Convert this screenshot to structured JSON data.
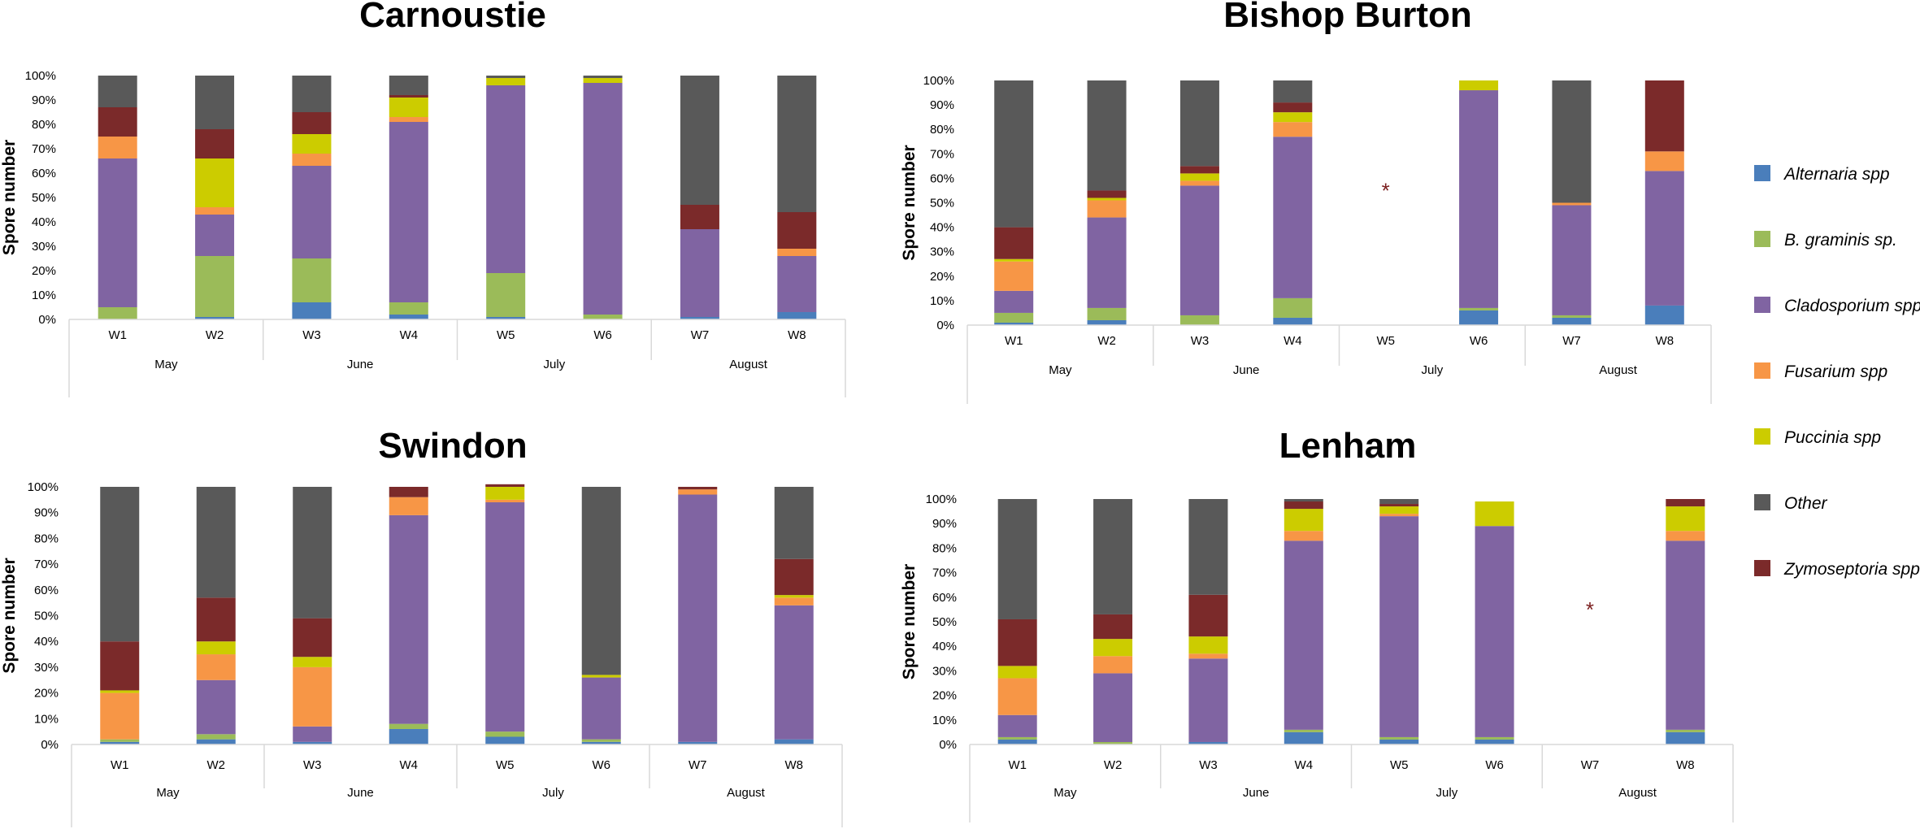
{
  "chart_data": [
    {
      "type": "bar",
      "stacked": true,
      "title": "Carnoustie",
      "ylabel": "Spore number",
      "ylim": [
        0,
        100
      ],
      "yticks": [
        "0%",
        "10%",
        "20%",
        "30%",
        "40%",
        "50%",
        "60%",
        "70%",
        "80%",
        "90%",
        "100%"
      ],
      "categories": [
        "W1",
        "W2",
        "W3",
        "W4",
        "W5",
        "W6",
        "W7",
        "W8"
      ],
      "months": [
        "May",
        "June",
        "July",
        "August"
      ],
      "series": [
        {
          "name": "Alternaria spp",
          "values": [
            0,
            1,
            7,
            2,
            1,
            0,
            1,
            3
          ]
        },
        {
          "name": "B. graminis sp.",
          "values": [
            5,
            25,
            18,
            5,
            18,
            2,
            0,
            0
          ]
        },
        {
          "name": "Cladosporium spp",
          "values": [
            61,
            17,
            38,
            74,
            77,
            95,
            36,
            23
          ]
        },
        {
          "name": "Fusarium spp",
          "values": [
            9,
            3,
            5,
            2,
            0,
            0,
            0,
            3
          ]
        },
        {
          "name": "Puccinia spp",
          "values": [
            0,
            20,
            8,
            8,
            3,
            2,
            0,
            0
          ]
        },
        {
          "name": "Zymoseptoria spp",
          "values": [
            12,
            12,
            9,
            1,
            0,
            0,
            10,
            15
          ]
        },
        {
          "name": "Other",
          "values": [
            13,
            22,
            15,
            8,
            1,
            1,
            53,
            56
          ]
        }
      ],
      "missing": []
    },
    {
      "type": "bar",
      "stacked": true,
      "title": "Bishop Burton",
      "ylabel": "Spore number",
      "ylim": [
        0,
        100
      ],
      "yticks": [
        "0%",
        "10%",
        "20%",
        "30%",
        "40%",
        "50%",
        "60%",
        "70%",
        "80%",
        "90%",
        "100%"
      ],
      "categories": [
        "W1",
        "W2",
        "W3",
        "W4",
        "W5",
        "W6",
        "W7",
        "W8"
      ],
      "months": [
        "May",
        "June",
        "July",
        "August"
      ],
      "series": [
        {
          "name": "Alternaria spp",
          "values": [
            1,
            2,
            0,
            3,
            0,
            6,
            3,
            8
          ]
        },
        {
          "name": "B. graminis sp.",
          "values": [
            4,
            5,
            4,
            8,
            0,
            1,
            1,
            0
          ]
        },
        {
          "name": "Cladosporium spp",
          "values": [
            9,
            37,
            53,
            66,
            0,
            89,
            45,
            55
          ]
        },
        {
          "name": "Fusarium spp",
          "values": [
            12,
            7,
            2,
            6,
            0,
            0,
            1,
            8
          ]
        },
        {
          "name": "Puccinia spp",
          "values": [
            1,
            1,
            3,
            4,
            0,
            4,
            0,
            0
          ]
        },
        {
          "name": "Zymoseptoria spp",
          "values": [
            13,
            3,
            3,
            4,
            0,
            0,
            0,
            29
          ]
        },
        {
          "name": "Other",
          "values": [
            60,
            45,
            35,
            9,
            0,
            0,
            50,
            0
          ]
        }
      ],
      "missing": [
        "W5"
      ],
      "missing_marker": "*"
    },
    {
      "type": "bar",
      "stacked": true,
      "title": "Swindon",
      "ylabel": "Spore number",
      "ylim": [
        0,
        100
      ],
      "yticks": [
        "0%",
        "10%",
        "20%",
        "30%",
        "40%",
        "50%",
        "60%",
        "70%",
        "80%",
        "90%",
        "100%"
      ],
      "categories": [
        "W1",
        "W2",
        "W3",
        "W4",
        "W5",
        "W6",
        "W7",
        "W8"
      ],
      "months": [
        "May",
        "June",
        "July",
        "August"
      ],
      "series": [
        {
          "name": "Alternaria spp",
          "values": [
            1,
            2,
            1,
            6,
            3,
            1,
            1,
            2
          ]
        },
        {
          "name": "B. graminis sp.",
          "values": [
            1,
            2,
            0,
            2,
            2,
            1,
            0,
            0
          ]
        },
        {
          "name": "Cladosporium spp",
          "values": [
            0,
            21,
            6,
            81,
            89,
            24,
            96,
            52
          ]
        },
        {
          "name": "Fusarium spp",
          "values": [
            18,
            10,
            23,
            7,
            1,
            0,
            2,
            3
          ]
        },
        {
          "name": "Puccinia spp",
          "values": [
            1,
            5,
            4,
            0,
            5,
            1,
            0,
            1
          ]
        },
        {
          "name": "Zymoseptoria spp",
          "values": [
            19,
            17,
            15,
            4,
            1,
            0,
            1,
            14
          ]
        },
        {
          "name": "Other",
          "values": [
            60,
            43,
            51,
            0,
            0,
            73,
            0,
            28
          ]
        }
      ],
      "missing": []
    },
    {
      "type": "bar",
      "stacked": true,
      "title": "Lenham",
      "ylabel": "Spore number",
      "ylim": [
        0,
        100
      ],
      "yticks": [
        "0%",
        "10%",
        "20%",
        "30%",
        "40%",
        "50%",
        "60%",
        "70%",
        "80%",
        "90%",
        "100%"
      ],
      "categories": [
        "W1",
        "W2",
        "W3",
        "W4",
        "W5",
        "W6",
        "W7",
        "W8"
      ],
      "months": [
        "May",
        "June",
        "July",
        "August"
      ],
      "series": [
        {
          "name": "Alternaria spp",
          "values": [
            2,
            0,
            1,
            5,
            2,
            2,
            0,
            5
          ]
        },
        {
          "name": "B. graminis sp.",
          "values": [
            1,
            1,
            0,
            1,
            1,
            1,
            0,
            1
          ]
        },
        {
          "name": "Cladosporium spp",
          "values": [
            9,
            28,
            34,
            77,
            90,
            86,
            0,
            77
          ]
        },
        {
          "name": "Fusarium spp",
          "values": [
            15,
            7,
            2,
            4,
            1,
            0,
            0,
            4
          ]
        },
        {
          "name": "Puccinia spp",
          "values": [
            5,
            7,
            7,
            9,
            3,
            10,
            0,
            10
          ]
        },
        {
          "name": "Zymoseptoria spp",
          "values": [
            19,
            10,
            17,
            3,
            1,
            0,
            0,
            3
          ]
        },
        {
          "name": "Other",
          "values": [
            49,
            47,
            39,
            1,
            2,
            0,
            0,
            0
          ]
        }
      ],
      "missing": [
        "W7"
      ],
      "missing_marker": "*"
    }
  ],
  "legend": [
    {
      "name": "Alternaria spp",
      "color": "#4a7ebb"
    },
    {
      "name": "B. graminis sp.",
      "color": "#9bbb59"
    },
    {
      "name": "Cladosporium spp",
      "color": "#8064a2"
    },
    {
      "name": "Fusarium spp",
      "color": "#f79646"
    },
    {
      "name": "Puccinia spp",
      "color": "#cccc00"
    },
    {
      "name": "Other",
      "color": "#595959"
    },
    {
      "name": "Zymoseptoria spp",
      "color": "#7b2a2a"
    }
  ]
}
